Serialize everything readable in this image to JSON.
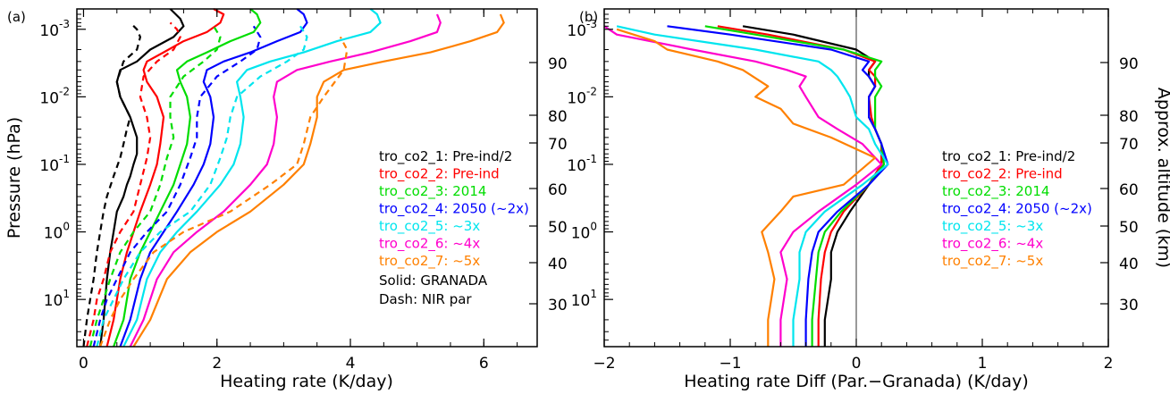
{
  "chart_data": [
    {
      "panel_label": "(a)",
      "type": "line",
      "xlabel": "Heating rate (K/day)",
      "ylabel": "Pressure (hPa)",
      "y2label": "Approx. altitude (km)",
      "xlim": [
        -0.1,
        6.8
      ],
      "ylim_log_pressure": [
        50,
        0.0005
      ],
      "y_scale": "log-reversed",
      "x_ticks": [
        "0",
        "2",
        "4",
        "6"
      ],
      "y_ticks": [
        {
          "base": "10",
          "exp": "-3"
        },
        {
          "base": "10",
          "exp": "-2"
        },
        {
          "base": "10",
          "exp": "-1"
        },
        {
          "base": "10",
          "exp": "0"
        },
        {
          "base": "10",
          "exp": "1"
        }
      ],
      "y2_ticks": [
        "90",
        "80",
        "70",
        "60",
        "50",
        "40",
        "30"
      ],
      "legend_position": "right",
      "note": [
        "Solid: GRANADA",
        "Dash: NIR par"
      ],
      "series": [
        {
          "name": "tro_co2_1: Pre-ind/2",
          "color": "#000000",
          "solid": {
            "x": [
              0.25,
              0.3,
              0.35,
              0.4,
              0.45,
              0.5,
              0.6,
              0.65,
              0.7,
              0.75,
              0.8,
              0.8,
              0.7,
              0.55,
              0.5,
              0.55,
              0.8,
              1.0,
              1.35,
              1.5,
              1.45,
              1.3
            ],
            "p": [
              50,
              20,
              5,
              2,
              1,
              0.5,
              0.3,
              0.2,
              0.15,
              0.1,
              0.07,
              0.04,
              0.02,
              0.01,
              0.006,
              0.004,
              0.003,
              0.002,
              0.0013,
              0.0009,
              0.0007,
              0.0005
            ]
          },
          "dash": {
            "x": [
              0,
              0.05,
              0.1,
              0.15,
              0.2,
              0.25,
              0.3,
              0.35,
              0.45,
              0.55,
              0.6,
              0.65,
              0.7,
              0.55,
              0.5,
              0.6,
              0.8,
              0.85,
              0.8,
              0.7
            ],
            "p": [
              50,
              20,
              10,
              5,
              2,
              1,
              0.5,
              0.3,
              0.15,
              0.08,
              0.05,
              0.03,
              0.02,
              0.01,
              0.006,
              0.003,
              0.002,
              0.0013,
              0.001,
              0.0008
            ]
          }
        },
        {
          "name": "tro_co2_2: Pre-ind",
          "color": "#ff0000",
          "solid": {
            "x": [
              0.35,
              0.45,
              0.55,
              0.65,
              0.75,
              0.85,
              1.0,
              1.1,
              1.15,
              1.2,
              1.1,
              0.95,
              0.9,
              0.95,
              1.2,
              1.5,
              1.85,
              2.05,
              2.1,
              1.95
            ],
            "p": [
              50,
              20,
              5,
              2,
              1,
              0.5,
              0.2,
              0.1,
              0.05,
              0.02,
              0.01,
              0.006,
              0.004,
              0.003,
              0.0022,
              0.0015,
              0.0011,
              0.0008,
              0.0006,
              0.0005
            ]
          },
          "dash": {
            "x": [
              0.05,
              0.15,
              0.2,
              0.3,
              0.4,
              0.55,
              0.75,
              0.85,
              0.95,
              1.0,
              0.95,
              0.85,
              0.9,
              1.1,
              1.35,
              1.45,
              1.4,
              1.3
            ],
            "p": [
              50,
              20,
              10,
              5,
              2,
              1,
              0.5,
              0.2,
              0.08,
              0.04,
              0.02,
              0.01,
              0.005,
              0.003,
              0.002,
              0.0013,
              0.001,
              0.0008
            ]
          }
        },
        {
          "name": "tro_co2_3: 2014",
          "color": "#00dd00",
          "solid": {
            "x": [
              0.45,
              0.6,
              0.7,
              0.85,
              1.0,
              1.15,
              1.35,
              1.45,
              1.55,
              1.6,
              1.55,
              1.45,
              1.4,
              1.55,
              1.85,
              2.2,
              2.55,
              2.65,
              2.6,
              2.5
            ],
            "p": [
              50,
              20,
              5,
              2,
              1,
              0.5,
              0.2,
              0.1,
              0.05,
              0.02,
              0.01,
              0.006,
              0.004,
              0.003,
              0.0022,
              0.0015,
              0.0011,
              0.0008,
              0.0006,
              0.0005
            ]
          },
          "dash": {
            "x": [
              0.1,
              0.2,
              0.3,
              0.4,
              0.55,
              0.75,
              1.0,
              1.15,
              1.25,
              1.35,
              1.3,
              1.3,
              1.5,
              1.8,
              2.0,
              2.05,
              1.95
            ],
            "p": [
              50,
              20,
              10,
              5,
              2,
              1,
              0.5,
              0.2,
              0.08,
              0.04,
              0.02,
              0.01,
              0.005,
              0.003,
              0.002,
              0.0013,
              0.0009
            ]
          }
        },
        {
          "name": "tro_co2_4: 2050 (~2x)",
          "color": "#0000ff",
          "solid": {
            "x": [
              0.55,
              0.7,
              0.85,
              1.0,
              1.2,
              1.4,
              1.65,
              1.8,
              1.9,
              1.95,
              1.9,
              1.8,
              1.85,
              2.1,
              2.5,
              2.9,
              3.25,
              3.35,
              3.3,
              3.2
            ],
            "p": [
              50,
              20,
              5,
              2,
              1,
              0.5,
              0.2,
              0.1,
              0.05,
              0.02,
              0.01,
              0.006,
              0.004,
              0.003,
              0.0022,
              0.0015,
              0.0011,
              0.0008,
              0.0006,
              0.0005
            ]
          },
          "dash": {
            "x": [
              0.15,
              0.25,
              0.35,
              0.5,
              0.7,
              0.95,
              1.25,
              1.45,
              1.6,
              1.7,
              1.7,
              1.75,
              2.0,
              2.35,
              2.6,
              2.65,
              2.55
            ],
            "p": [
              50,
              20,
              10,
              5,
              2,
              1,
              0.5,
              0.2,
              0.08,
              0.04,
              0.02,
              0.01,
              0.005,
              0.003,
              0.002,
              0.0013,
              0.0009
            ]
          }
        },
        {
          "name": "tro_co2_5: ~3x",
          "color": "#00e5ee",
          "solid": {
            "x": [
              0.6,
              0.8,
              0.95,
              1.15,
              1.4,
              1.7,
              2.05,
              2.25,
              2.35,
              2.4,
              2.35,
              2.3,
              2.45,
              2.8,
              3.3,
              3.8,
              4.3,
              4.45,
              4.4,
              4.3
            ],
            "p": [
              50,
              20,
              5,
              2,
              1,
              0.5,
              0.2,
              0.1,
              0.05,
              0.02,
              0.01,
              0.006,
              0.004,
              0.003,
              0.0022,
              0.0015,
              0.0011,
              0.0008,
              0.0006,
              0.0005
            ]
          },
          "dash": {
            "x": [
              0.2,
              0.3,
              0.45,
              0.6,
              0.85,
              1.15,
              1.6,
              1.9,
              2.05,
              2.15,
              2.2,
              2.3,
              2.65,
              3.05,
              3.3,
              3.35,
              3.25
            ],
            "p": [
              50,
              20,
              10,
              5,
              2,
              1,
              0.5,
              0.2,
              0.08,
              0.04,
              0.02,
              0.01,
              0.005,
              0.003,
              0.002,
              0.0013,
              0.0009
            ]
          }
        },
        {
          "name": "tro_co2_6: ~4x",
          "color": "#ff00cc",
          "solid": {
            "x": [
              0.7,
              0.9,
              1.1,
              1.35,
              1.7,
              2.1,
              2.5,
              2.75,
              2.85,
              2.9,
              2.85,
              2.9,
              3.2,
              3.7,
              4.3,
              4.9,
              5.3,
              5.35,
              5.3
            ],
            "p": [
              50,
              20,
              5,
              2,
              1,
              0.5,
              0.2,
              0.1,
              0.05,
              0.02,
              0.01,
              0.006,
              0.004,
              0.003,
              0.0022,
              0.0015,
              0.0011,
              0.0008,
              0.0006
            ]
          }
        },
        {
          "name": "tro_co2_7: ~5x",
          "color": "#ff8000",
          "solid": {
            "x": [
              0.75,
              1.0,
              1.25,
              1.6,
              2.0,
              2.5,
              3.0,
              3.3,
              3.4,
              3.5,
              3.5,
              3.6,
              3.9,
              4.5,
              5.2,
              5.8,
              6.2,
              6.3,
              6.25
            ],
            "p": [
              50,
              20,
              5,
              2,
              1,
              0.5,
              0.2,
              0.1,
              0.05,
              0.02,
              0.01,
              0.006,
              0.004,
              0.003,
              0.0022,
              0.0015,
              0.0011,
              0.0008,
              0.0006
            ]
          },
          "dash": {
            "x": [
              0.25,
              0.4,
              0.55,
              0.75,
              1.05,
              1.5,
              2.2,
              2.8,
              3.2,
              3.3,
              3.4,
              3.6,
              3.9,
              3.95,
              3.85
            ],
            "p": [
              50,
              20,
              10,
              5,
              2,
              1,
              0.5,
              0.2,
              0.1,
              0.05,
              0.02,
              0.01,
              0.004,
              0.002,
              0.0013
            ]
          }
        }
      ]
    },
    {
      "panel_label": "(b)",
      "type": "line",
      "xlabel": "Heating rate Diff (Par.−Granada) (K/day)",
      "y2label": "Approx. altitude (km)",
      "xlim": [
        -2,
        2
      ],
      "ylim_log_pressure": [
        50,
        0.0005
      ],
      "y_scale": "log-reversed",
      "x_ticks": [
        "−2",
        "−1",
        "0",
        "1",
        "2"
      ],
      "y_ticks": [
        {
          "base": "10",
          "exp": "-3"
        },
        {
          "base": "10",
          "exp": "-2"
        },
        {
          "base": "10",
          "exp": "-1"
        },
        {
          "base": "10",
          "exp": "0"
        },
        {
          "base": "10",
          "exp": "1"
        }
      ],
      "y2_ticks": [
        "90",
        "80",
        "70",
        "60",
        "50",
        "40",
        "30"
      ],
      "vertical_line_at": 0,
      "legend_position": "right",
      "series": [
        {
          "name": "tro_co2_1: Pre-ind/2",
          "color": "#000000",
          "x": [
            -0.25,
            -0.25,
            -0.2,
            -0.2,
            -0.15,
            -0.05,
            0.1,
            0.2,
            0.2,
            0.15,
            0.1,
            0.1,
            0.15,
            0.1,
            0.1,
            0.15,
            0.0,
            -0.5,
            -0.9
          ],
          "p": [
            50,
            20,
            5,
            2,
            1,
            0.5,
            0.2,
            0.1,
            0.05,
            0.03,
            0.02,
            0.01,
            0.007,
            0.005,
            0.004,
            0.003,
            0.002,
            0.0012,
            0.0009
          ]
        },
        {
          "name": "tro_co2_2: Pre-ind",
          "color": "#ff0000",
          "x": [
            -0.3,
            -0.3,
            -0.28,
            -0.25,
            -0.2,
            -0.1,
            0.1,
            0.2,
            0.2,
            0.15,
            0.12,
            0.1,
            0.15,
            0.15,
            0.1,
            0.15,
            -0.1,
            -0.7,
            -1.1
          ],
          "p": [
            50,
            20,
            5,
            2,
            1,
            0.5,
            0.2,
            0.1,
            0.05,
            0.03,
            0.02,
            0.01,
            0.007,
            0.005,
            0.004,
            0.003,
            0.002,
            0.0012,
            0.0009
          ]
        },
        {
          "name": "tro_co2_3: 2014",
          "color": "#00dd00",
          "x": [
            -0.35,
            -0.35,
            -0.32,
            -0.3,
            -0.25,
            -0.12,
            0.1,
            0.22,
            0.2,
            0.15,
            0.15,
            0.15,
            0.2,
            0.15,
            0.15,
            0.2,
            -0.1,
            -0.8,
            -1.2
          ],
          "p": [
            50,
            20,
            5,
            2,
            1,
            0.5,
            0.2,
            0.1,
            0.05,
            0.03,
            0.02,
            0.01,
            0.007,
            0.005,
            0.004,
            0.003,
            0.002,
            0.0012,
            0.0009
          ]
        },
        {
          "name": "tro_co2_4: 2050 (~2x)",
          "color": "#0000ff",
          "x": [
            -0.4,
            -0.4,
            -0.38,
            -0.35,
            -0.3,
            -0.15,
            0.1,
            0.25,
            0.2,
            0.15,
            0.1,
            0.1,
            0.15,
            0.1,
            0.05,
            0.1,
            -0.2,
            -1.0,
            -1.5
          ],
          "p": [
            50,
            20,
            5,
            2,
            1,
            0.5,
            0.2,
            0.1,
            0.05,
            0.03,
            0.02,
            0.01,
            0.007,
            0.005,
            0.004,
            0.003,
            0.002,
            0.0012,
            0.0009
          ]
        },
        {
          "name": "tro_co2_5: ~3x",
          "color": "#00e5ee",
          "x": [
            -0.5,
            -0.5,
            -0.45,
            -0.45,
            -0.4,
            -0.25,
            0.05,
            0.25,
            0.15,
            0.1,
            0.0,
            -0.05,
            -0.1,
            -0.15,
            -0.2,
            -0.3,
            -0.8,
            -1.6,
            -1.9
          ],
          "p": [
            50,
            20,
            5,
            2,
            1,
            0.5,
            0.2,
            0.1,
            0.05,
            0.03,
            0.02,
            0.01,
            0.007,
            0.005,
            0.004,
            0.003,
            0.002,
            0.0012,
            0.0009
          ]
        },
        {
          "name": "tro_co2_6: ~4x",
          "color": "#ff00cc",
          "x": [
            -0.6,
            -0.6,
            -0.55,
            -0.6,
            -0.5,
            -0.3,
            0.0,
            0.2,
            0.05,
            -0.15,
            -0.3,
            -0.4,
            -0.45,
            -0.4,
            -0.55,
            -0.8,
            -1.3,
            -1.9,
            -2.0
          ],
          "p": [
            50,
            20,
            5,
            2,
            1,
            0.5,
            0.2,
            0.1,
            0.05,
            0.03,
            0.02,
            0.01,
            0.007,
            0.005,
            0.004,
            0.003,
            0.002,
            0.0012,
            0.0009
          ]
        },
        {
          "name": "tro_co2_7: ~5x",
          "color": "#ff8000",
          "x": [
            -0.7,
            -0.7,
            -0.65,
            -0.7,
            -0.75,
            -0.6,
            -0.5,
            -0.1,
            0.15,
            -0.2,
            -0.5,
            -0.6,
            -0.8,
            -0.7,
            -0.9,
            -1.1,
            -1.5,
            -1.6,
            -1.9
          ],
          "p": [
            50,
            20,
            5,
            2,
            1,
            0.5,
            0.3,
            0.2,
            0.08,
            0.04,
            0.025,
            0.015,
            0.01,
            0.007,
            0.004,
            0.003,
            0.002,
            0.0015,
            0.001
          ]
        }
      ]
    }
  ]
}
